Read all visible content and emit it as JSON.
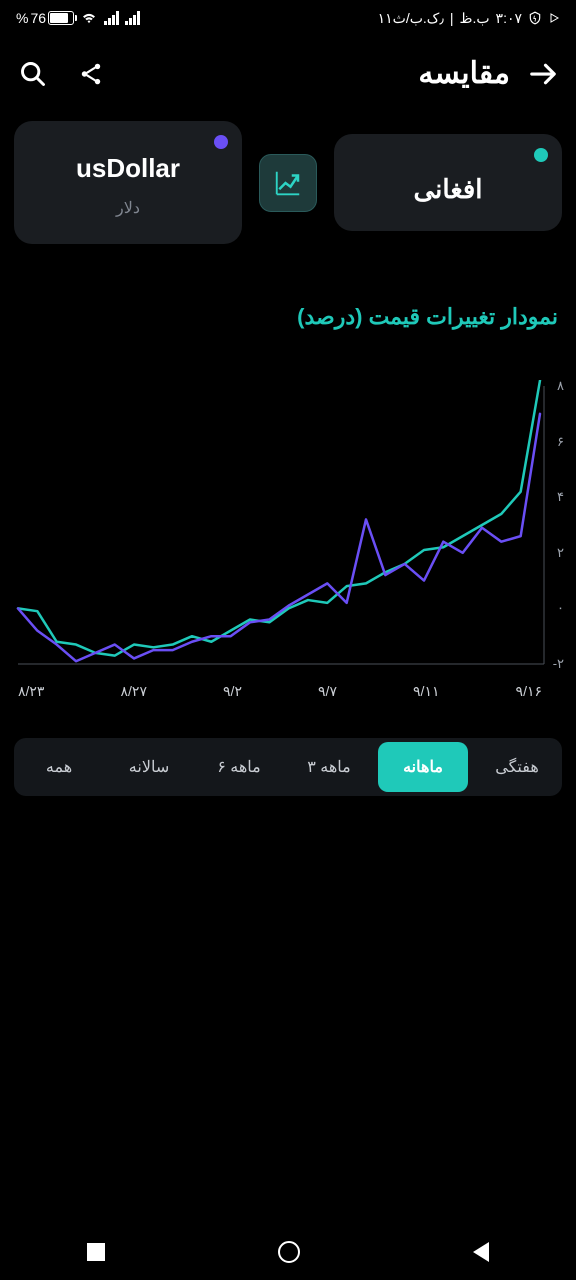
{
  "status": {
    "battery_pct": "76",
    "battery_prefix": "%",
    "time": "۳:۰۷",
    "period": "ب.ظ",
    "date": "۱۱٫ک.ب/ث",
    "separator": "|"
  },
  "header": {
    "title": "مقایسه"
  },
  "cards": {
    "left": {
      "title": "usDollar",
      "subtitle": "دلار",
      "dot_color": "#6a4ff5"
    },
    "right": {
      "title": "افغانی",
      "subtitle": "",
      "dot_color": "#1fc9b9"
    }
  },
  "chart": {
    "title": "نمودار تغییرات قیمت (درصد)",
    "title_color": "#1fc9b9",
    "type": "line",
    "background_color": "#000000",
    "axis_color": "#4a4f58",
    "ylim": [
      -2,
      8
    ],
    "ytick_step": 2,
    "y_labels": [
      "۸",
      "۶",
      "۴",
      "۲",
      "۰",
      "-۲"
    ],
    "x_labels": [
      "۸/۲۳",
      "۸/۲۷",
      "۹/۲",
      "۹/۷",
      "۹/۱۱",
      "۹/۱۶"
    ],
    "label_color": "#9da3ad",
    "label_fontsize": 13,
    "line_width": 2.5,
    "series": [
      {
        "name": "afghani",
        "color": "#1fc9b9",
        "data": [
          0.0,
          -0.1,
          -1.2,
          -1.3,
          -1.6,
          -1.7,
          -1.3,
          -1.4,
          -1.3,
          -1.0,
          -1.2,
          -0.8,
          -0.4,
          -0.5,
          0.0,
          0.3,
          0.2,
          0.8,
          0.9,
          1.3,
          1.6,
          2.1,
          2.2,
          2.6,
          3.0,
          3.4,
          4.2,
          8.2
        ]
      },
      {
        "name": "usdollar",
        "color": "#6a4ff5",
        "data": [
          0.0,
          -0.8,
          -1.3,
          -1.9,
          -1.6,
          -1.3,
          -1.8,
          -1.5,
          -1.5,
          -1.2,
          -1.0,
          -1.0,
          -0.5,
          -0.4,
          0.1,
          0.5,
          0.9,
          0.2,
          3.2,
          1.2,
          1.6,
          1.0,
          2.4,
          2.0,
          2.9,
          2.4,
          2.6,
          7.0
        ]
      }
    ]
  },
  "periods": {
    "items": [
      "همه",
      "سالانه",
      "۶ ماهه",
      "۳ ماهه",
      "ماهانه",
      "هفتگی"
    ],
    "active_index": 4,
    "active_bg": "#1fc9b9"
  }
}
